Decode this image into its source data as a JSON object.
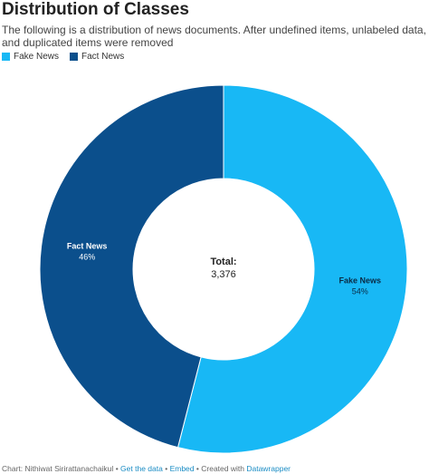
{
  "chart_data": {
    "type": "donut",
    "title": "Distribution of Classes",
    "subtitle": "The following is a distribution of news documents. After undefined items, unlabeled data, and duplicated items were removed",
    "categories": [
      "Fake News",
      "Fact News"
    ],
    "values": [
      54,
      46
    ],
    "value_labels": [
      "54%",
      "46%"
    ],
    "colors": [
      "#18b8f5",
      "#0b4f8c"
    ],
    "center_label": "Total:",
    "total": {
      "value": 3376,
      "label": "3,376"
    }
  },
  "footer": {
    "credit": "Chart: Nithiwat Sirirattanachaikul",
    "separator": "•",
    "get_data": "Get the data",
    "embed": "Embed",
    "created_with": "Created with",
    "tool": "Datawrapper"
  }
}
